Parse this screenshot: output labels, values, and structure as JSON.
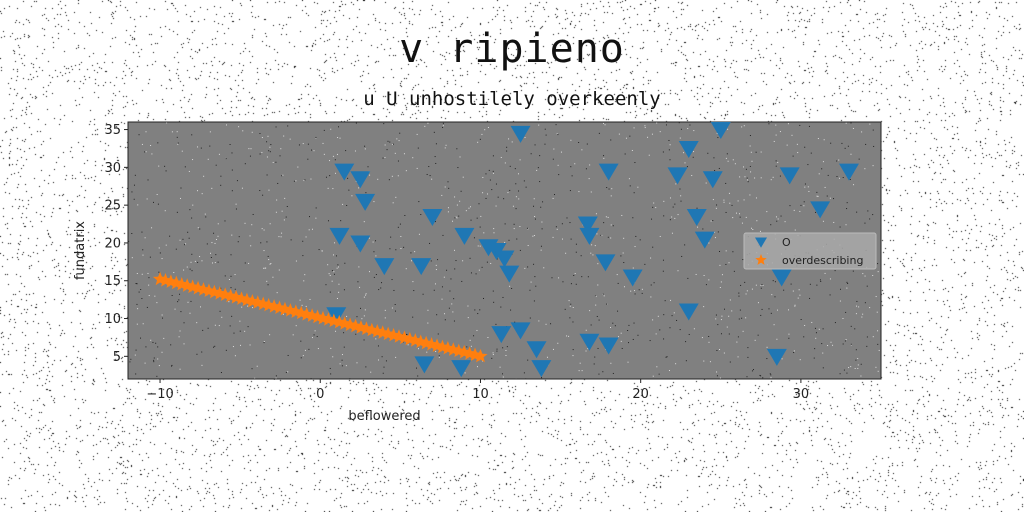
{
  "title": "v ripieno",
  "subtitle": "u U unhostilely overkeenly",
  "chart_data": {
    "type": "scatter",
    "xlabel": "beflowered",
    "ylabel": "fundatrix",
    "xlim": [
      -12,
      35
    ],
    "ylim": [
      2,
      36
    ],
    "xticks": [
      -10,
      0,
      10,
      20,
      30
    ],
    "yticks": [
      5,
      10,
      15,
      20,
      25,
      30,
      35
    ],
    "grid": false,
    "legend_position": "center-right",
    "background": "#808080",
    "series": [
      {
        "name": "O",
        "marker": "triangle-down",
        "color": "#1f77b4",
        "points": [
          [
            1.5,
            29.5
          ],
          [
            2.5,
            28.5
          ],
          [
            2.8,
            25.5
          ],
          [
            1.2,
            21.0
          ],
          [
            2.5,
            20.0
          ],
          [
            4.0,
            17.0
          ],
          [
            6.3,
            17.0
          ],
          [
            7.0,
            23.5
          ],
          [
            9.0,
            21.0
          ],
          [
            10.5,
            19.5
          ],
          [
            11.0,
            19.0
          ],
          [
            11.5,
            18.0
          ],
          [
            11.8,
            16.0
          ],
          [
            1.0,
            10.5
          ],
          [
            6.5,
            4.0
          ],
          [
            8.8,
            3.5
          ],
          [
            11.3,
            8.0
          ],
          [
            12.5,
            8.5
          ],
          [
            13.5,
            6.0
          ],
          [
            13.8,
            3.5
          ],
          [
            12.5,
            34.5
          ],
          [
            16.7,
            22.5
          ],
          [
            16.8,
            21.0
          ],
          [
            17.8,
            17.5
          ],
          [
            18.0,
            29.5
          ],
          [
            16.8,
            7.0
          ],
          [
            18.0,
            6.5
          ],
          [
            19.5,
            15.5
          ],
          [
            22.3,
            29.0
          ],
          [
            23.0,
            32.5
          ],
          [
            23.5,
            23.5
          ],
          [
            24.0,
            20.5
          ],
          [
            24.5,
            28.5
          ],
          [
            23.0,
            11.0
          ],
          [
            25.0,
            35.0
          ],
          [
            29.3,
            29.0
          ],
          [
            31.2,
            24.5
          ],
          [
            28.8,
            15.5
          ],
          [
            33.0,
            29.5
          ],
          [
            28.5,
            5.0
          ]
        ]
      },
      {
        "name": "overdescribing",
        "marker": "star",
        "color": "#ff7f0e",
        "line": {
          "x_start": -10,
          "y_start": 15.2,
          "x_end": 10,
          "y_end": 5.0,
          "count": 60
        }
      }
    ]
  }
}
